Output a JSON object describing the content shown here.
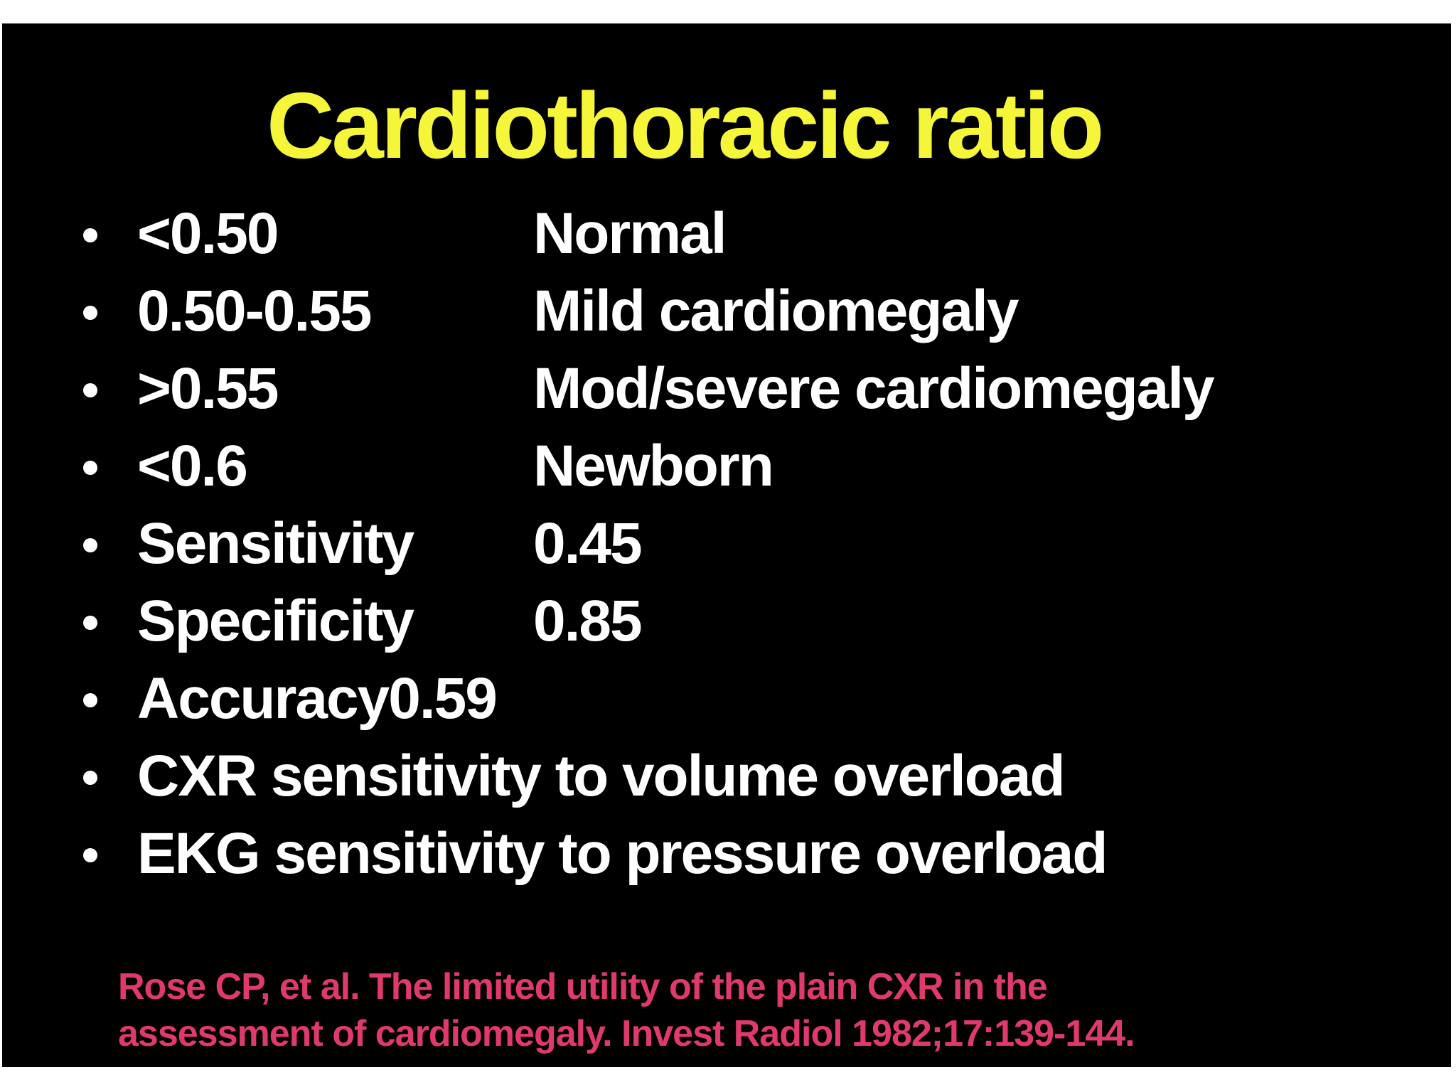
{
  "slide": {
    "title": "Cardiothoracic ratio",
    "rows": [
      {
        "label": "<0.50",
        "value": "Normal"
      },
      {
        "label": "0.50-0.55",
        "value": "Mild cardiomegaly"
      },
      {
        "label": ">0.55",
        "value": "Mod/severe cardiomegaly"
      },
      {
        "label": "<0.6",
        "value": "Newborn"
      },
      {
        "label": "Sensitivity",
        "value": "0.45"
      },
      {
        "label": "Specificity",
        "value": "0.85"
      },
      {
        "label": "Accuracy0.59",
        "value": ""
      },
      {
        "label": "CXR sensitivity to volume overload",
        "value": ""
      },
      {
        "label": "EKG sensitivity to pressure overload",
        "value": ""
      }
    ],
    "citation": {
      "line1": "Rose CP, et al. The limited utility of the plain CXR in the",
      "line2": "assessment of cardiomegaly. Invest Radiol 1982;17:139-144."
    },
    "colors": {
      "background": "#000000",
      "title": "#f5f53a",
      "text": "#ffffff",
      "citation": "#e03a6c"
    }
  }
}
